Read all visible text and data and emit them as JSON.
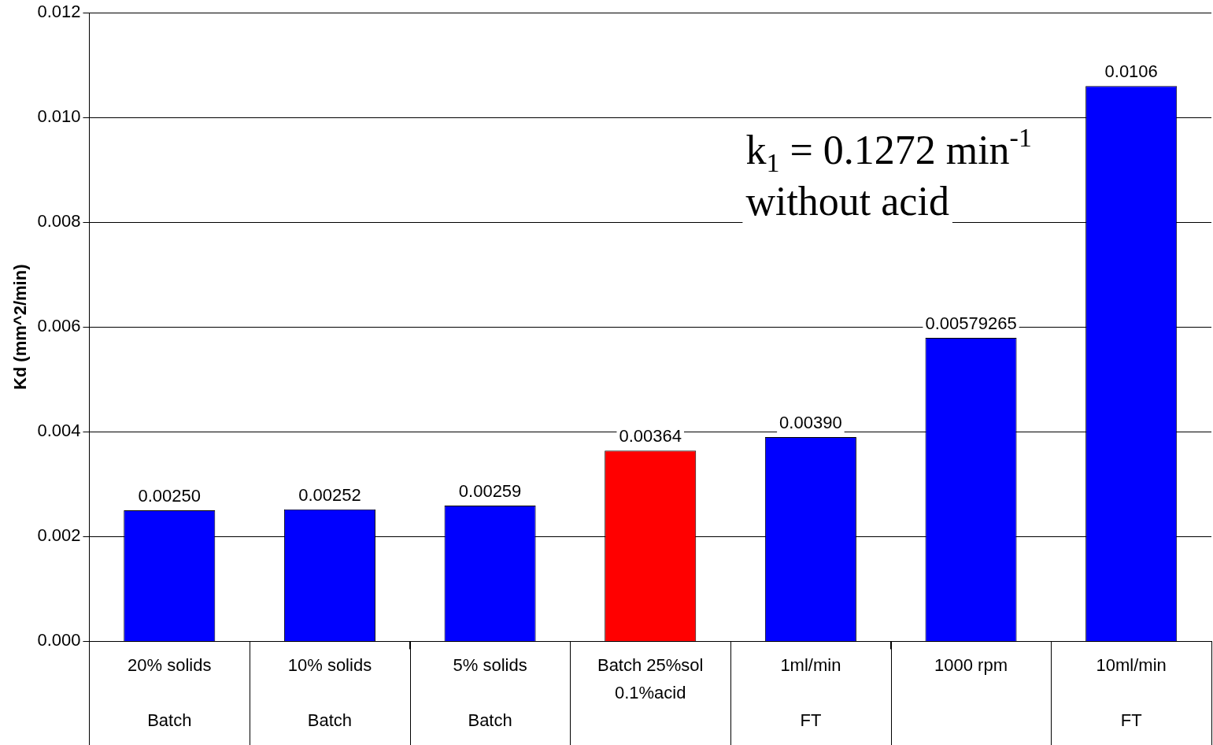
{
  "chart_data": {
    "type": "bar",
    "ylabel": "Kd (mm^2/min)",
    "categories": [
      "20% solids\n\nBatch",
      "10% solids\n\nBatch",
      "5% solids\n\nBatch",
      "Batch 25%sol\n0.1%acid",
      "1ml/min\n\nFT",
      "1000 rpm",
      "10ml/min\n\nFT"
    ],
    "values": [
      0.0025,
      0.00252,
      0.00259,
      0.00364,
      0.0039,
      0.00579265,
      0.0106
    ],
    "value_labels": [
      "0.00250",
      "0.00252",
      "0.00259",
      "0.00364",
      "0.00390",
      "0.00579265",
      "0.0106"
    ],
    "colors": [
      "#0000ff",
      "#0000ff",
      "#0000ff",
      "#ff0000",
      "#0000ff",
      "#0000ff",
      "#0000ff"
    ],
    "ylim": [
      0,
      0.012
    ],
    "yticks": [
      {
        "value": 0,
        "label": "0.000"
      },
      {
        "value": 0.002,
        "label": "0.002"
      },
      {
        "value": 0.004,
        "label": "0.004"
      },
      {
        "value": 0.006,
        "label": "0.006"
      },
      {
        "value": 0.008,
        "label": "0.008"
      },
      {
        "value": 0.01,
        "label": "0.010"
      },
      {
        "value": 0.012,
        "label": "0.012"
      }
    ],
    "grid": "y",
    "legend": false,
    "annotations": [
      "k$_{1}$ = 0.1272 min$^{-1}$",
      "without acid"
    ]
  }
}
